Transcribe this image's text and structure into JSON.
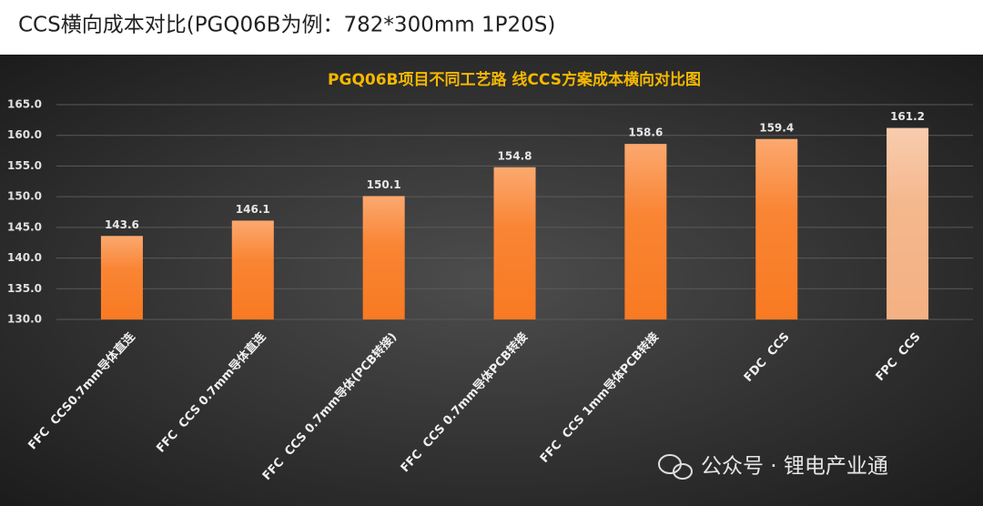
{
  "header": {
    "title": "CCS横向成本对比(PGQ06B为例：782*300mm  1P20S)"
  },
  "chart_data": {
    "type": "bar",
    "title": "PGQ06B项目不同工艺路 线CCS方案成本横向对比图",
    "categories": [
      "FFC  CCS0.7mm导体直连",
      "FFC  CCS 0.7mm导体直连",
      "FFC  CCS 0.7mm导体(PCB转接)",
      "FFC  CCS 0.7mm导体PCB转接",
      "FFC  CCS 1mm导体PCB转接",
      "FDC  CCS",
      "FPC  CCS"
    ],
    "values": [
      143.6,
      146.1,
      150.1,
      154.8,
      158.6,
      159.4,
      161.2
    ],
    "colors": [
      "#f97a22",
      "#f97a22",
      "#f97a22",
      "#f97a22",
      "#f97a22",
      "#f97a22",
      "#f4b183"
    ],
    "ylim": [
      130,
      165
    ],
    "yticks": [
      {
        "value": 130,
        "label": "130.0"
      },
      {
        "value": 135,
        "label": "135.0"
      },
      {
        "value": 140,
        "label": "140.0"
      },
      {
        "value": 145,
        "label": "145.0"
      },
      {
        "value": 150,
        "label": "150.0"
      },
      {
        "value": 155,
        "label": "155.0"
      },
      {
        "value": 160,
        "label": "160.0"
      },
      {
        "value": 165,
        "label": "165.0"
      }
    ],
    "grid": true
  },
  "watermark": "公众号 · 锂电产业通"
}
